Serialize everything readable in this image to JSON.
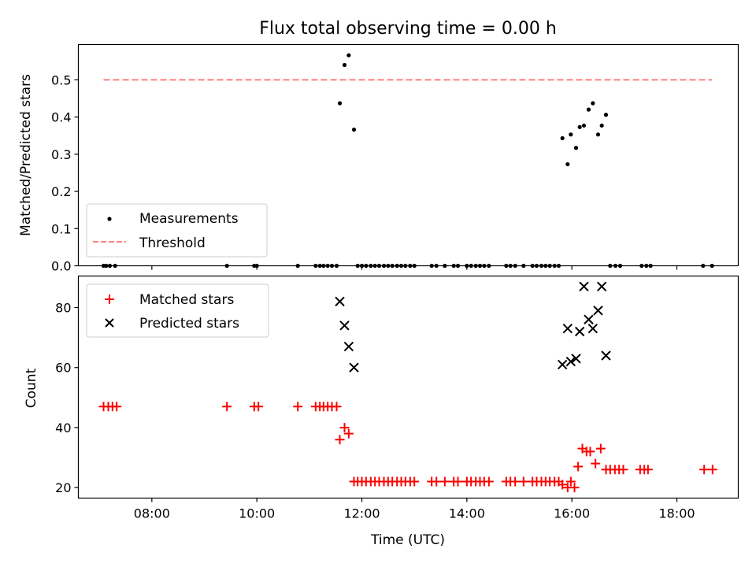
{
  "chart_data": [
    {
      "type": "scatter",
      "title": "Flux total observing time = 0.00 h",
      "xlabel": "",
      "ylabel": "Matched/Predicted stars",
      "ylim": [
        0,
        0.595
      ],
      "yticks": [
        "0.0",
        "0.1",
        "0.2",
        "0.3",
        "0.4",
        "0.5"
      ],
      "ytick_values": [
        0,
        0.1,
        0.2,
        0.3,
        0.4,
        0.5
      ],
      "legend_position": "lower-left",
      "series": [
        {
          "name": "Measurements",
          "marker": "dot",
          "color": "#000000",
          "points": [
            [
              7.08,
              0
            ],
            [
              7.13,
              0
            ],
            [
              7.2,
              0
            ],
            [
              7.3,
              0
            ],
            [
              9.43,
              0
            ],
            [
              9.95,
              0
            ],
            [
              10.0,
              0
            ],
            [
              10.78,
              0
            ],
            [
              11.12,
              0
            ],
            [
              11.2,
              0
            ],
            [
              11.27,
              0
            ],
            [
              11.35,
              0
            ],
            [
              11.43,
              0
            ],
            [
              11.52,
              0
            ],
            [
              11.58,
              0.437
            ],
            [
              11.67,
              0.54
            ],
            [
              11.75,
              0.566
            ],
            [
              11.85,
              0.366
            ],
            [
              11.92,
              0
            ],
            [
              12.0,
              0
            ],
            [
              12.08,
              0
            ],
            [
              12.17,
              0
            ],
            [
              12.25,
              0
            ],
            [
              12.33,
              0
            ],
            [
              12.42,
              0
            ],
            [
              12.5,
              0
            ],
            [
              12.58,
              0
            ],
            [
              12.67,
              0
            ],
            [
              12.75,
              0
            ],
            [
              12.83,
              0
            ],
            [
              12.92,
              0
            ],
            [
              13.0,
              0
            ],
            [
              13.33,
              0
            ],
            [
              13.42,
              0
            ],
            [
              13.58,
              0
            ],
            [
              13.75,
              0
            ],
            [
              13.83,
              0
            ],
            [
              14.0,
              0
            ],
            [
              14.08,
              0
            ],
            [
              14.17,
              0
            ],
            [
              14.25,
              0
            ],
            [
              14.33,
              0
            ],
            [
              14.42,
              0
            ],
            [
              14.75,
              0
            ],
            [
              14.83,
              0
            ],
            [
              14.92,
              0
            ],
            [
              15.08,
              0
            ],
            [
              15.25,
              0
            ],
            [
              15.33,
              0
            ],
            [
              15.42,
              0
            ],
            [
              15.5,
              0
            ],
            [
              15.58,
              0
            ],
            [
              15.67,
              0
            ],
            [
              15.75,
              0
            ],
            [
              15.82,
              0.343
            ],
            [
              15.92,
              0.273
            ],
            [
              15.98,
              0.353
            ],
            [
              16.08,
              0.317
            ],
            [
              16.15,
              0.373
            ],
            [
              16.23,
              0.377
            ],
            [
              16.32,
              0.42
            ],
            [
              16.4,
              0.437
            ],
            [
              16.5,
              0.353
            ],
            [
              16.57,
              0.377
            ],
            [
              16.65,
              0.406
            ],
            [
              16.73,
              0
            ],
            [
              16.83,
              0
            ],
            [
              16.92,
              0
            ],
            [
              17.33,
              0
            ],
            [
              17.42,
              0
            ],
            [
              17.5,
              0
            ],
            [
              18.5,
              0
            ],
            [
              18.67,
              0
            ]
          ]
        },
        {
          "name": "Threshold",
          "line": "dashed",
          "color": "#ff7f7f",
          "points": [
            [
              7.08,
              0.5
            ],
            [
              18.67,
              0.5
            ]
          ]
        }
      ]
    },
    {
      "type": "scatter",
      "title": "",
      "xlabel": "Time (UTC)",
      "ylabel": "Count",
      "ylim": [
        16.5,
        90.5
      ],
      "xlim": [
        6.6,
        19.17
      ],
      "xticks": [
        "08:00",
        "10:00",
        "12:00",
        "14:00",
        "16:00",
        "18:00"
      ],
      "xtick_values": [
        8,
        10,
        12,
        14,
        16,
        18
      ],
      "yticks": [
        "20",
        "40",
        "60",
        "80"
      ],
      "ytick_values": [
        20,
        40,
        60,
        80
      ],
      "legend_position": "upper-left",
      "series": [
        {
          "name": "Matched stars",
          "marker": "plus",
          "color": "#ff0000",
          "points": [
            [
              7.08,
              47
            ],
            [
              7.17,
              47
            ],
            [
              7.25,
              47
            ],
            [
              7.33,
              47
            ],
            [
              9.43,
              47
            ],
            [
              9.95,
              47
            ],
            [
              10.03,
              47
            ],
            [
              10.78,
              47
            ],
            [
              11.12,
              47
            ],
            [
              11.2,
              47
            ],
            [
              11.27,
              47
            ],
            [
              11.35,
              47
            ],
            [
              11.43,
              47
            ],
            [
              11.52,
              47
            ],
            [
              11.58,
              36
            ],
            [
              11.67,
              40
            ],
            [
              11.75,
              38
            ],
            [
              11.85,
              22
            ],
            [
              11.92,
              22
            ],
            [
              12.0,
              22
            ],
            [
              12.08,
              22
            ],
            [
              12.17,
              22
            ],
            [
              12.25,
              22
            ],
            [
              12.33,
              22
            ],
            [
              12.42,
              22
            ],
            [
              12.5,
              22
            ],
            [
              12.58,
              22
            ],
            [
              12.67,
              22
            ],
            [
              12.75,
              22
            ],
            [
              12.83,
              22
            ],
            [
              12.92,
              22
            ],
            [
              13.0,
              22
            ],
            [
              13.33,
              22
            ],
            [
              13.42,
              22
            ],
            [
              13.58,
              22
            ],
            [
              13.75,
              22
            ],
            [
              13.83,
              22
            ],
            [
              14.0,
              22
            ],
            [
              14.08,
              22
            ],
            [
              14.17,
              22
            ],
            [
              14.25,
              22
            ],
            [
              14.33,
              22
            ],
            [
              14.42,
              22
            ],
            [
              14.75,
              22
            ],
            [
              14.83,
              22
            ],
            [
              14.92,
              22
            ],
            [
              15.08,
              22
            ],
            [
              15.25,
              22
            ],
            [
              15.33,
              22
            ],
            [
              15.42,
              22
            ],
            [
              15.5,
              22
            ],
            [
              15.58,
              22
            ],
            [
              15.67,
              22
            ],
            [
              15.75,
              22
            ],
            [
              15.82,
              21
            ],
            [
              15.92,
              20
            ],
            [
              15.98,
              22
            ],
            [
              16.05,
              20
            ],
            [
              16.12,
              27
            ],
            [
              16.2,
              33
            ],
            [
              16.28,
              32
            ],
            [
              16.35,
              32
            ],
            [
              16.45,
              28
            ],
            [
              16.55,
              33
            ],
            [
              16.65,
              26
            ],
            [
              16.73,
              26
            ],
            [
              16.82,
              26
            ],
            [
              16.9,
              26
            ],
            [
              16.98,
              26
            ],
            [
              17.3,
              26
            ],
            [
              17.38,
              26
            ],
            [
              17.45,
              26
            ],
            [
              18.52,
              26
            ],
            [
              18.68,
              26
            ]
          ]
        },
        {
          "name": "Predicted stars",
          "marker": "x",
          "color": "#000000",
          "points": [
            [
              11.58,
              82
            ],
            [
              11.67,
              74
            ],
            [
              11.75,
              67
            ],
            [
              11.85,
              60
            ],
            [
              15.82,
              61
            ],
            [
              15.92,
              73
            ],
            [
              15.98,
              62
            ],
            [
              16.08,
              63
            ],
            [
              16.15,
              72
            ],
            [
              16.23,
              87
            ],
            [
              16.32,
              76
            ],
            [
              16.4,
              73
            ],
            [
              16.5,
              79
            ],
            [
              16.57,
              87
            ],
            [
              16.65,
              64
            ]
          ]
        }
      ]
    }
  ]
}
